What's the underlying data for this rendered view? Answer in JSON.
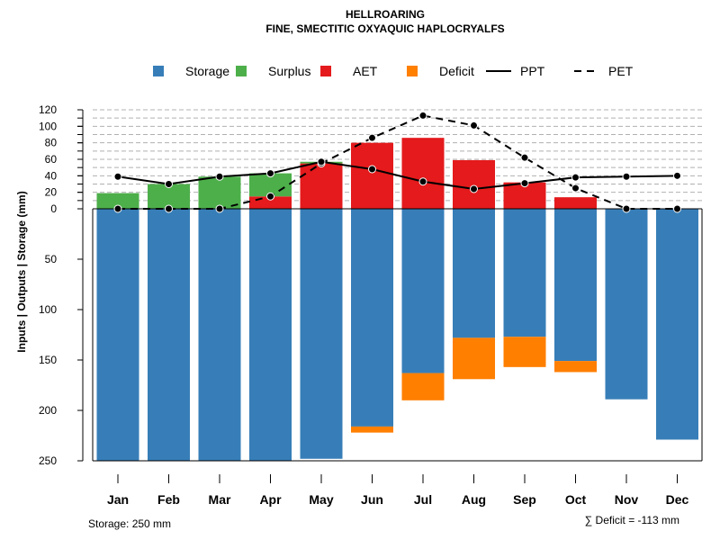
{
  "chart_data": {
    "type": "bar",
    "title": "HELLROARING",
    "subtitle": "FINE, SMECTITIC OXYAQUIC HAPLOCRYALFS",
    "ylabel": "Inputs | Outputs | Storage     (mm)",
    "categories": [
      "Jan",
      "Feb",
      "Mar",
      "Apr",
      "May",
      "Jun",
      "Jul",
      "Aug",
      "Sep",
      "Oct",
      "Nov",
      "Dec"
    ],
    "legend": [
      {
        "name": "Storage",
        "kind": "box",
        "color": "#377EB8"
      },
      {
        "name": "Surplus",
        "kind": "box",
        "color": "#4DAF4A"
      },
      {
        "name": "AET",
        "kind": "box",
        "color": "#E41A1C"
      },
      {
        "name": "Deficit",
        "kind": "box",
        "color": "#FF7F00"
      },
      {
        "name": "PPT",
        "kind": "solid-line",
        "color": "#000000"
      },
      {
        "name": "PET",
        "kind": "dashed-line",
        "color": "#000000"
      }
    ],
    "series": [
      {
        "name": "AET",
        "values": [
          0,
          0,
          0,
          15,
          55,
          80,
          86,
          59,
          32,
          14,
          0,
          0
        ]
      },
      {
        "name": "Surplus",
        "values": [
          19,
          30,
          39,
          28,
          2,
          0,
          0,
          0,
          0,
          0,
          0,
          0
        ]
      },
      {
        "name": "Storage",
        "values": [
          250,
          250,
          250,
          250,
          248,
          216,
          163,
          128,
          127,
          151,
          189,
          229
        ]
      },
      {
        "name": "Deficit",
        "values": [
          0,
          0,
          0,
          0,
          0,
          6,
          27,
          41,
          30,
          11,
          0,
          0
        ]
      },
      {
        "name": "PPT",
        "values": [
          39,
          30,
          39,
          43,
          57,
          48,
          33,
          24,
          31,
          38,
          39,
          40
        ]
      },
      {
        "name": "PET",
        "values": [
          0,
          0,
          0,
          15,
          55,
          86,
          113,
          101,
          62,
          25,
          0,
          0
        ]
      }
    ],
    "upper_ticks": [
      0,
      20,
      40,
      60,
      80,
      100,
      120
    ],
    "lower_ticks": [
      50,
      100,
      150,
      200,
      250
    ],
    "upper_ylim": [
      0,
      120
    ],
    "lower_ylim": [
      0,
      250
    ]
  },
  "footer": {
    "storage_note": "Storage: 250 mm",
    "deficit_note": "∑ Deficit = -113 mm"
  }
}
